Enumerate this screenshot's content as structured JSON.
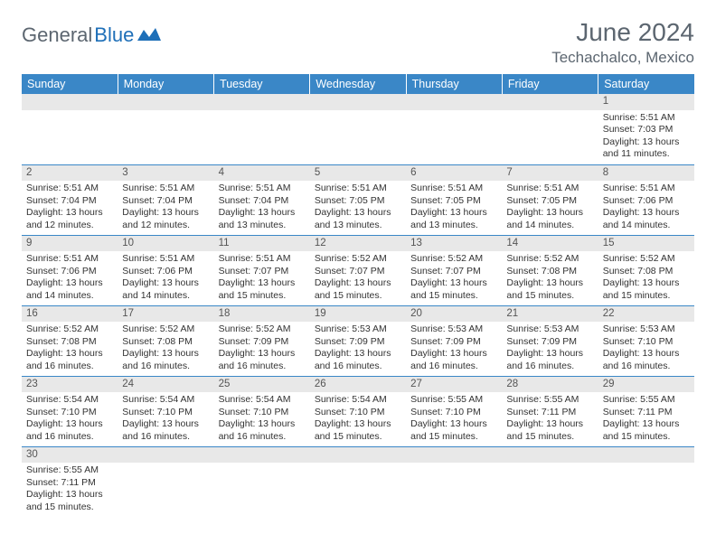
{
  "logo": {
    "part1": "General",
    "part2": "Blue"
  },
  "title": "June 2024",
  "location": "Techachalco, Mexico",
  "colors": {
    "header_bg": "#3a87c7",
    "header_text": "#ffffff",
    "daynum_bg": "#e8e8e8",
    "body_text": "#333333",
    "border": "#3a87c7",
    "logo_gray": "#5c6670",
    "logo_blue": "#1e6fb8"
  },
  "daysOfWeek": [
    "Sunday",
    "Monday",
    "Tuesday",
    "Wednesday",
    "Thursday",
    "Friday",
    "Saturday"
  ],
  "weeks": [
    [
      null,
      null,
      null,
      null,
      null,
      null,
      {
        "n": "1",
        "sr": "5:51 AM",
        "ss": "7:03 PM",
        "dl": "13 hours and 11 minutes."
      }
    ],
    [
      {
        "n": "2",
        "sr": "5:51 AM",
        "ss": "7:04 PM",
        "dl": "13 hours and 12 minutes."
      },
      {
        "n": "3",
        "sr": "5:51 AM",
        "ss": "7:04 PM",
        "dl": "13 hours and 12 minutes."
      },
      {
        "n": "4",
        "sr": "5:51 AM",
        "ss": "7:04 PM",
        "dl": "13 hours and 13 minutes."
      },
      {
        "n": "5",
        "sr": "5:51 AM",
        "ss": "7:05 PM",
        "dl": "13 hours and 13 minutes."
      },
      {
        "n": "6",
        "sr": "5:51 AM",
        "ss": "7:05 PM",
        "dl": "13 hours and 13 minutes."
      },
      {
        "n": "7",
        "sr": "5:51 AM",
        "ss": "7:05 PM",
        "dl": "13 hours and 14 minutes."
      },
      {
        "n": "8",
        "sr": "5:51 AM",
        "ss": "7:06 PM",
        "dl": "13 hours and 14 minutes."
      }
    ],
    [
      {
        "n": "9",
        "sr": "5:51 AM",
        "ss": "7:06 PM",
        "dl": "13 hours and 14 minutes."
      },
      {
        "n": "10",
        "sr": "5:51 AM",
        "ss": "7:06 PM",
        "dl": "13 hours and 14 minutes."
      },
      {
        "n": "11",
        "sr": "5:51 AM",
        "ss": "7:07 PM",
        "dl": "13 hours and 15 minutes."
      },
      {
        "n": "12",
        "sr": "5:52 AM",
        "ss": "7:07 PM",
        "dl": "13 hours and 15 minutes."
      },
      {
        "n": "13",
        "sr": "5:52 AM",
        "ss": "7:07 PM",
        "dl": "13 hours and 15 minutes."
      },
      {
        "n": "14",
        "sr": "5:52 AM",
        "ss": "7:08 PM",
        "dl": "13 hours and 15 minutes."
      },
      {
        "n": "15",
        "sr": "5:52 AM",
        "ss": "7:08 PM",
        "dl": "13 hours and 15 minutes."
      }
    ],
    [
      {
        "n": "16",
        "sr": "5:52 AM",
        "ss": "7:08 PM",
        "dl": "13 hours and 16 minutes."
      },
      {
        "n": "17",
        "sr": "5:52 AM",
        "ss": "7:08 PM",
        "dl": "13 hours and 16 minutes."
      },
      {
        "n": "18",
        "sr": "5:52 AM",
        "ss": "7:09 PM",
        "dl": "13 hours and 16 minutes."
      },
      {
        "n": "19",
        "sr": "5:53 AM",
        "ss": "7:09 PM",
        "dl": "13 hours and 16 minutes."
      },
      {
        "n": "20",
        "sr": "5:53 AM",
        "ss": "7:09 PM",
        "dl": "13 hours and 16 minutes."
      },
      {
        "n": "21",
        "sr": "5:53 AM",
        "ss": "7:09 PM",
        "dl": "13 hours and 16 minutes."
      },
      {
        "n": "22",
        "sr": "5:53 AM",
        "ss": "7:10 PM",
        "dl": "13 hours and 16 minutes."
      }
    ],
    [
      {
        "n": "23",
        "sr": "5:54 AM",
        "ss": "7:10 PM",
        "dl": "13 hours and 16 minutes."
      },
      {
        "n": "24",
        "sr": "5:54 AM",
        "ss": "7:10 PM",
        "dl": "13 hours and 16 minutes."
      },
      {
        "n": "25",
        "sr": "5:54 AM",
        "ss": "7:10 PM",
        "dl": "13 hours and 16 minutes."
      },
      {
        "n": "26",
        "sr": "5:54 AM",
        "ss": "7:10 PM",
        "dl": "13 hours and 15 minutes."
      },
      {
        "n": "27",
        "sr": "5:55 AM",
        "ss": "7:10 PM",
        "dl": "13 hours and 15 minutes."
      },
      {
        "n": "28",
        "sr": "5:55 AM",
        "ss": "7:11 PM",
        "dl": "13 hours and 15 minutes."
      },
      {
        "n": "29",
        "sr": "5:55 AM",
        "ss": "7:11 PM",
        "dl": "13 hours and 15 minutes."
      }
    ],
    [
      {
        "n": "30",
        "sr": "5:55 AM",
        "ss": "7:11 PM",
        "dl": "13 hours and 15 minutes."
      },
      null,
      null,
      null,
      null,
      null,
      null
    ]
  ],
  "labels": {
    "sunrise": "Sunrise:",
    "sunset": "Sunset:",
    "daylight": "Daylight:"
  }
}
